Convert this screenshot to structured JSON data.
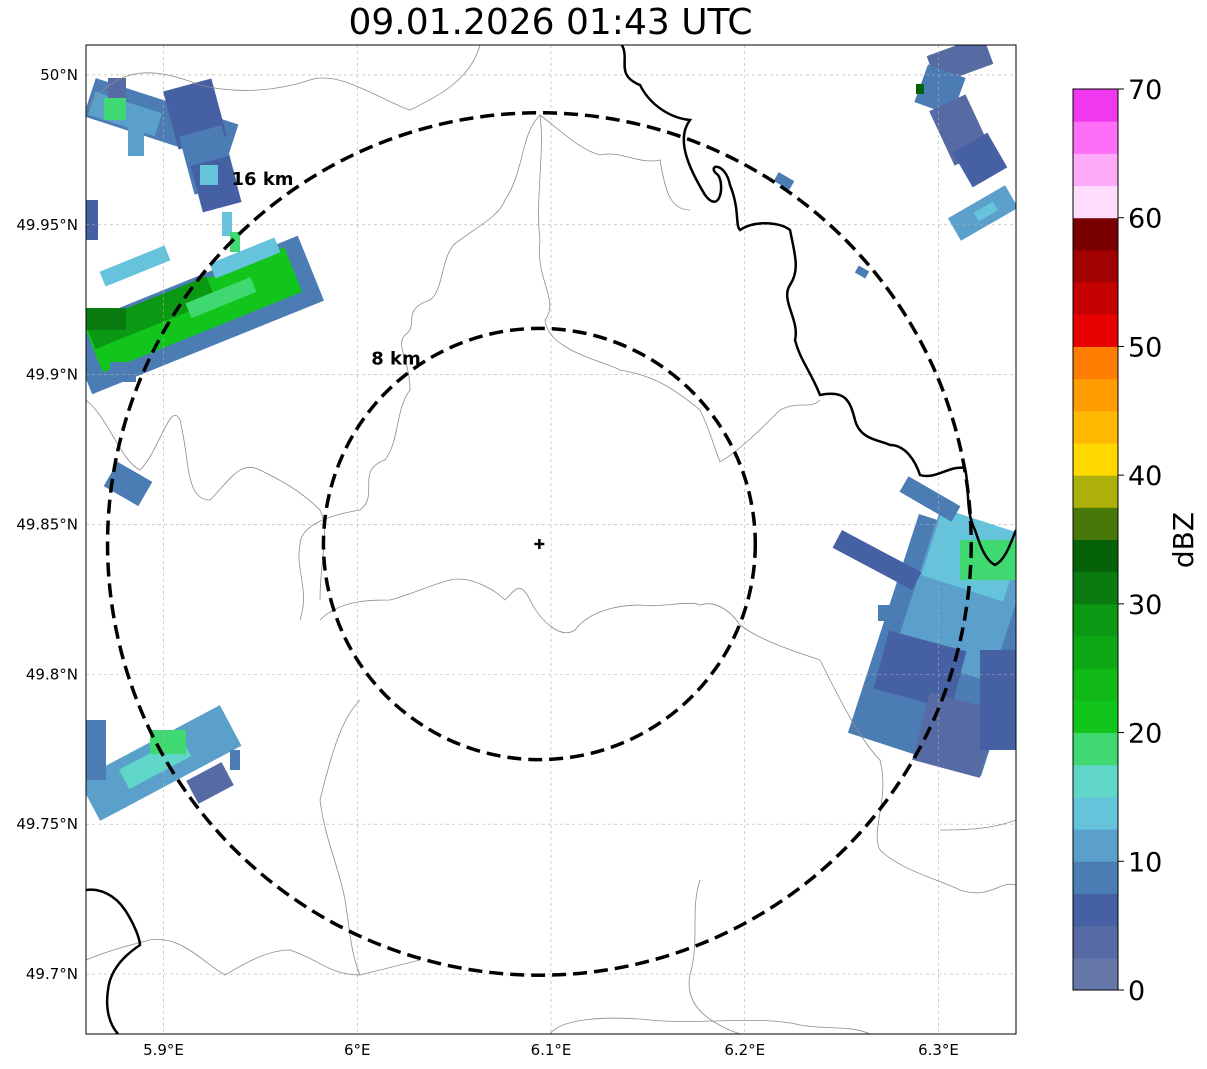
{
  "title": "09.01.2026 01:43 UTC",
  "map": {
    "lon_range": [
      5.86,
      6.34
    ],
    "lat_range": [
      49.68,
      50.01
    ],
    "lon_ticks": [
      {
        "value": 5.9,
        "label": "5.9°E"
      },
      {
        "value": 6.0,
        "label": "6°E"
      },
      {
        "value": 6.1,
        "label": "6.1°E"
      },
      {
        "value": 6.2,
        "label": "6.2°E"
      },
      {
        "value": 6.3,
        "label": "6.3°E"
      }
    ],
    "lat_ticks": [
      {
        "value": 50.0,
        "label": "50°N"
      },
      {
        "value": 49.95,
        "label": "49.95°N"
      },
      {
        "value": 49.9,
        "label": "49.9°N"
      },
      {
        "value": 49.85,
        "label": "49.85°N"
      },
      {
        "value": 49.8,
        "label": "49.8°N"
      },
      {
        "value": 49.75,
        "label": "49.75°N"
      },
      {
        "value": 49.7,
        "label": "49.7°N"
      }
    ],
    "grid": true,
    "center": {
      "lon": 6.094,
      "lat": 49.8435
    },
    "range_rings": [
      {
        "radius_km": 8,
        "label": "8 km"
      },
      {
        "radius_km": 16,
        "label": "16 km"
      }
    ]
  },
  "colorbar": {
    "label": "dBZ",
    "min": 0,
    "max": 70,
    "ticks": [
      0,
      10,
      20,
      30,
      40,
      50,
      60,
      70
    ],
    "colors": [
      "#6577a9",
      "#566aa3",
      "#4560a3",
      "#4b7db4",
      "#5aa0ca",
      "#65c3dc",
      "#60d6c8",
      "#40d870",
      "#12c51c",
      "#10b818",
      "#0ea816",
      "#0b9914",
      "#097b10",
      "#066208",
      "#48770a",
      "#adaf0a",
      "#ffd800",
      "#ffb700",
      "#ff9c00",
      "#ff7d00",
      "#e80000",
      "#c50000",
      "#a30000",
      "#7a0000",
      "#ffdcfc",
      "#ffaaf8",
      "#ff6ef6",
      "#f038ee"
    ]
  }
}
